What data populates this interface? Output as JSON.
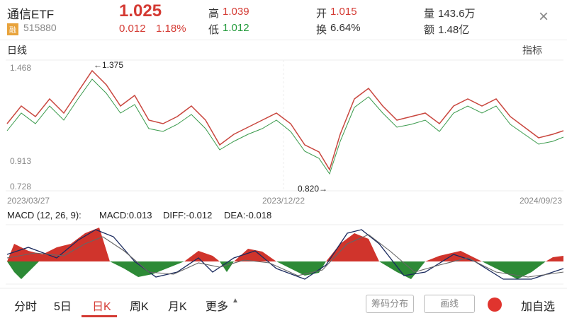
{
  "header": {
    "name": "通信ETF",
    "badge": "融",
    "code": "515880",
    "price": "1.025",
    "change": "0.012",
    "change_pct": "1.18%",
    "high_label": "高",
    "high": "1.039",
    "low_label": "低",
    "low": "1.012",
    "open_label": "开",
    "open": "1.015",
    "turnover_label": "换",
    "turnover": "6.64%",
    "volume_label": "量",
    "volume": "143.6万",
    "amount_label": "额",
    "amount": "1.48亿",
    "close": "×"
  },
  "chart": {
    "period": "日线",
    "indicator": "指标",
    "price_labels": [
      "1.468",
      "0.913",
      "0.728"
    ],
    "dates": [
      "2023/03/27",
      "2023/12/22",
      "2024/09/23"
    ],
    "max_note": "←1.375",
    "min_note": "0.820→"
  },
  "macd": {
    "params": "MACD (12, 26, 9):",
    "macd": "MACD:0.013",
    "diff": "DIFF:-0.012",
    "dea": "DEA:-0.018"
  },
  "tabs": [
    "分时",
    "5日",
    "日K",
    "周K",
    "月K",
    "更多"
  ],
  "buttons": {
    "chips": "筹码分布",
    "draw": "画线",
    "add": "加自选"
  }
}
